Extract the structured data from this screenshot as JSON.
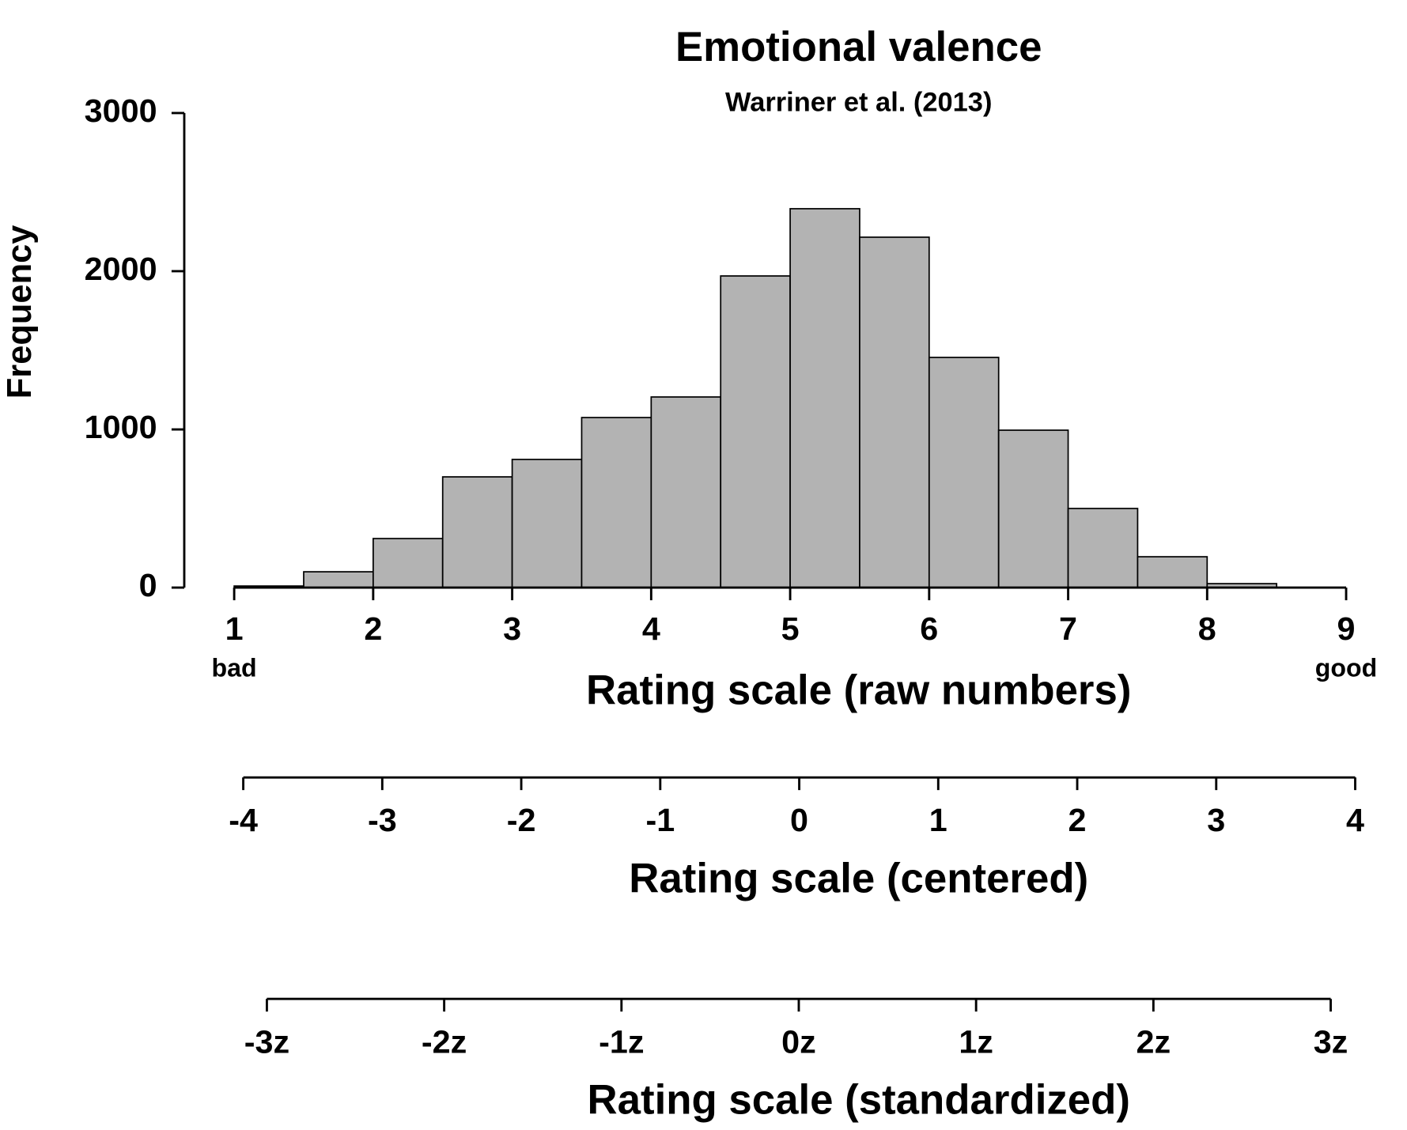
{
  "chart_data": {
    "type": "histogram",
    "title": "Emotional valence",
    "subtitle": "Warriner et al. (2013)",
    "x_label": "Rating scale (raw numbers)",
    "y_label": "Frequency",
    "x_end_labels": [
      "bad",
      "good"
    ],
    "bins": [
      1,
      1.5,
      2,
      2.5,
      3,
      3.5,
      4,
      4.5,
      5,
      5.5,
      6,
      6.5,
      7,
      7.5,
      8,
      8.5
    ],
    "values": [
      10,
      100,
      310,
      700,
      810,
      1075,
      1205,
      1970,
      2395,
      2215,
      1455,
      995,
      500,
      195,
      25
    ],
    "color": "#b3b3b3",
    "xlim": [
      1,
      9
    ],
    "xticks": [
      1,
      2,
      3,
      4,
      5,
      6,
      7,
      8,
      9
    ],
    "ylim": [
      0,
      3000
    ],
    "yticks": [
      0,
      1000,
      2000,
      3000
    ],
    "extra_axes": [
      {
        "label": "Rating scale (centered)",
        "lim": [
          -4,
          4
        ],
        "ticks": [
          -4,
          -3,
          -2,
          -1,
          0,
          1,
          2,
          3,
          4
        ]
      },
      {
        "label": "Rating scale (standardized)",
        "lim": [
          -3,
          3
        ],
        "ticks": [
          {
            "value": -3,
            "label": "-3z"
          },
          {
            "value": -2,
            "label": "-2z"
          },
          {
            "value": -1,
            "label": "-1z"
          },
          {
            "value": 0,
            "label": "0z"
          },
          {
            "value": 1,
            "label": "1z"
          },
          {
            "value": 2,
            "label": "2z"
          },
          {
            "value": 3,
            "label": "3z"
          }
        ]
      }
    ]
  }
}
